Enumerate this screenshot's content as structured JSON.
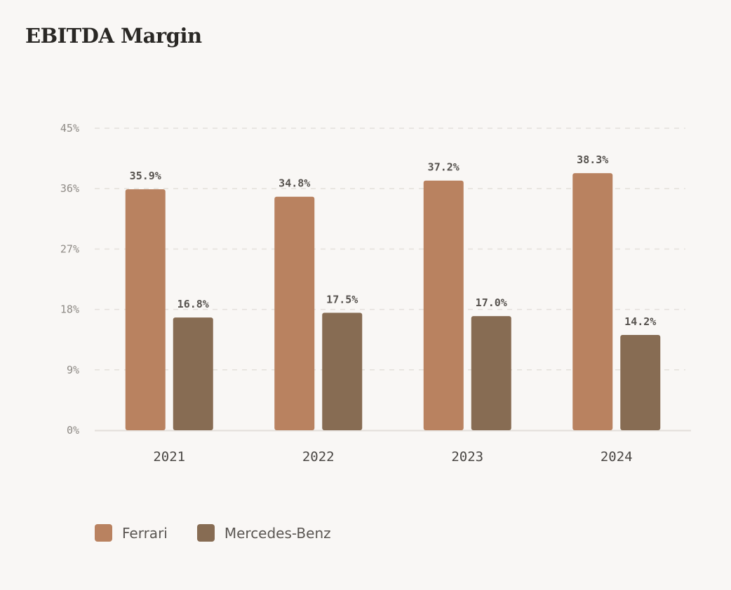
{
  "chart_data": {
    "type": "bar",
    "title": "EBITDA Margin",
    "categories": [
      "2021",
      "2022",
      "2023",
      "2024"
    ],
    "series": [
      {
        "name": "Ferrari",
        "values": [
          35.9,
          34.8,
          37.2,
          38.3
        ],
        "color": "#b98260"
      },
      {
        "name": "Mercedes-Benz",
        "values": [
          16.8,
          17.5,
          17.0,
          14.2
        ],
        "color": "#876c53"
      }
    ],
    "ylim": [
      0,
      45
    ],
    "yticks": [
      "0%",
      "9%",
      "18%",
      "27%",
      "36%",
      "45%"
    ],
    "ytick_values": [
      0,
      9,
      18,
      27,
      36,
      45
    ],
    "grid": true,
    "legend": "bottom-left",
    "value_suffix": "%"
  }
}
